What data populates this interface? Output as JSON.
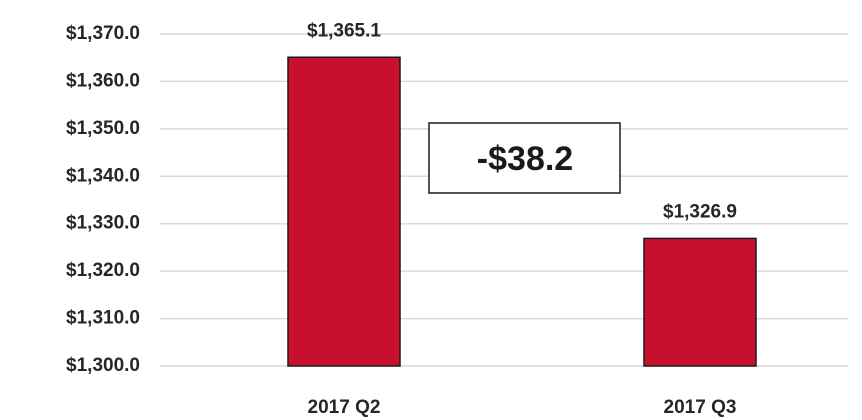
{
  "chart_data": {
    "type": "bar",
    "categories": [
      "2017 Q2",
      "2017 Q3"
    ],
    "values": [
      1365.1,
      1326.9
    ],
    "value_labels": [
      "$1,365.1",
      "$1,326.9"
    ],
    "color": "#c8102e",
    "annotation": "-$38.2",
    "ylim": [
      1300,
      1370
    ],
    "yticks": [
      {
        "value": 1300,
        "label": "$1,300.0"
      },
      {
        "value": 1310,
        "label": "$1,310.0"
      },
      {
        "value": 1320,
        "label": "$1,320.0"
      },
      {
        "value": 1330,
        "label": "$1,330.0"
      },
      {
        "value": 1340,
        "label": "$1,340.0"
      },
      {
        "value": 1350,
        "label": "$1,350.0"
      },
      {
        "value": 1360,
        "label": "$1,360.0"
      },
      {
        "value": 1370,
        "label": "$1,370.0"
      }
    ],
    "grid": true
  }
}
